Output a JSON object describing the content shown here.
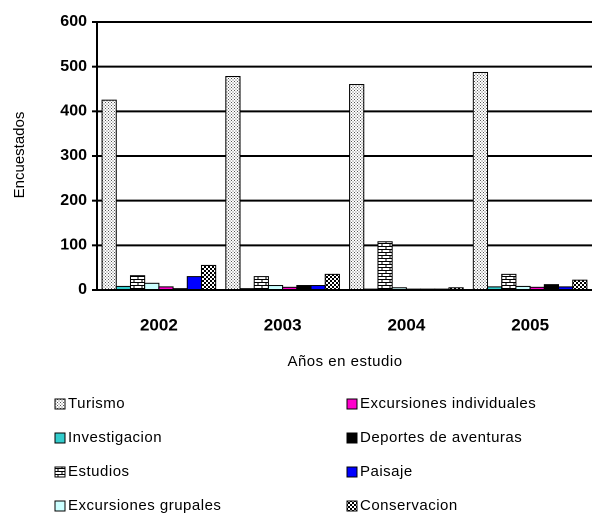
{
  "chart_data": {
    "type": "bar",
    "ylabel": "Encuestados",
    "xlabel": "Años en estudio",
    "categories": [
      "2002",
      "2003",
      "2004",
      "2005"
    ],
    "series": [
      {
        "name": "Turismo",
        "color": "#e0e0e0",
        "pattern": "dots",
        "values": [
          425,
          478,
          460,
          487
        ]
      },
      {
        "name": "Investigacion",
        "color": "#33cccc",
        "values": [
          8,
          3,
          2,
          7
        ]
      },
      {
        "name": "Estudios",
        "color": "#ffffff",
        "pattern": "brick",
        "values": [
          32,
          30,
          108,
          35
        ]
      },
      {
        "name": "Excursiones grupales",
        "color": "#ccffff",
        "values": [
          15,
          10,
          5,
          8
        ]
      },
      {
        "name": "Excursiones individuales",
        "color": "#ff00cc",
        "values": [
          7,
          6,
          2,
          6
        ]
      },
      {
        "name": "Deportes de aventuras",
        "color": "#000000",
        "values": [
          3,
          10,
          2,
          12
        ]
      },
      {
        "name": "Paisaje",
        "color": "#0000ff",
        "values": [
          30,
          10,
          2,
          7
        ]
      },
      {
        "name": "Conservacion",
        "color": "#222222",
        "pattern": "checker",
        "values": [
          55,
          35,
          5,
          22
        ]
      }
    ],
    "ylim": [
      0,
      600
    ],
    "yticks": [
      0,
      100,
      200,
      300,
      400,
      500,
      600
    ],
    "grid": true
  }
}
